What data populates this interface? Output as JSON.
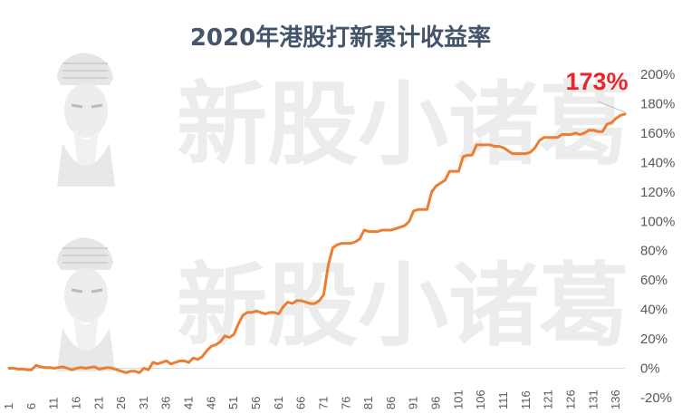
{
  "chart_data": {
    "type": "line",
    "title": "2020年港股打新累计收益率",
    "xlabel": "",
    "ylabel": "",
    "ylim": [
      -20,
      200
    ],
    "yticks": [
      "-20%",
      "0%",
      "20%",
      "40%",
      "60%",
      "80%",
      "100%",
      "120%",
      "140%",
      "160%",
      "180%",
      "200%"
    ],
    "xticks": [
      "1",
      "6",
      "11",
      "16",
      "21",
      "26",
      "31",
      "36",
      "41",
      "46",
      "51",
      "56",
      "61",
      "66",
      "71",
      "76",
      "81",
      "86",
      "91",
      "96",
      "101",
      "106",
      "111",
      "116",
      "121",
      "126",
      "131",
      "136"
    ],
    "grid": false,
    "line_color": "#ed7d31",
    "final_label": "173%",
    "final_label_color": "#e8262d",
    "watermark": "新股小诸葛",
    "series": [
      {
        "values": [
          0,
          0,
          -0.5,
          -0.5,
          -1,
          -1,
          2,
          1,
          0.5,
          0.5,
          0,
          0.5,
          1,
          0,
          -1,
          0,
          0.5,
          0,
          0.5,
          1,
          -0.5,
          0,
          0.5,
          0,
          -1,
          -2,
          -3,
          -2,
          -2,
          -3,
          0,
          -1,
          4,
          3,
          4,
          5,
          3,
          4,
          5,
          5,
          4,
          7,
          6,
          8,
          12,
          15,
          16,
          18,
          22,
          21,
          23,
          30,
          36,
          38,
          38,
          39,
          38,
          37,
          38,
          38,
          37,
          42,
          45,
          44,
          46,
          46,
          45,
          44,
          44,
          46,
          50,
          70,
          82,
          84,
          85,
          85,
          85,
          86,
          88,
          94,
          93,
          93,
          93,
          94,
          94,
          94,
          95,
          96,
          97,
          100,
          107,
          108,
          108,
          108,
          120,
          124,
          126,
          128,
          134,
          134,
          134,
          144,
          145,
          145,
          152,
          152,
          152,
          152,
          151,
          151,
          150,
          148,
          146,
          146,
          146,
          146,
          147,
          150,
          155,
          157,
          157,
          157,
          157,
          159,
          159,
          159,
          160,
          159,
          160,
          162,
          162,
          161,
          161,
          166,
          167,
          170,
          172,
          173
        ]
      }
    ]
  }
}
